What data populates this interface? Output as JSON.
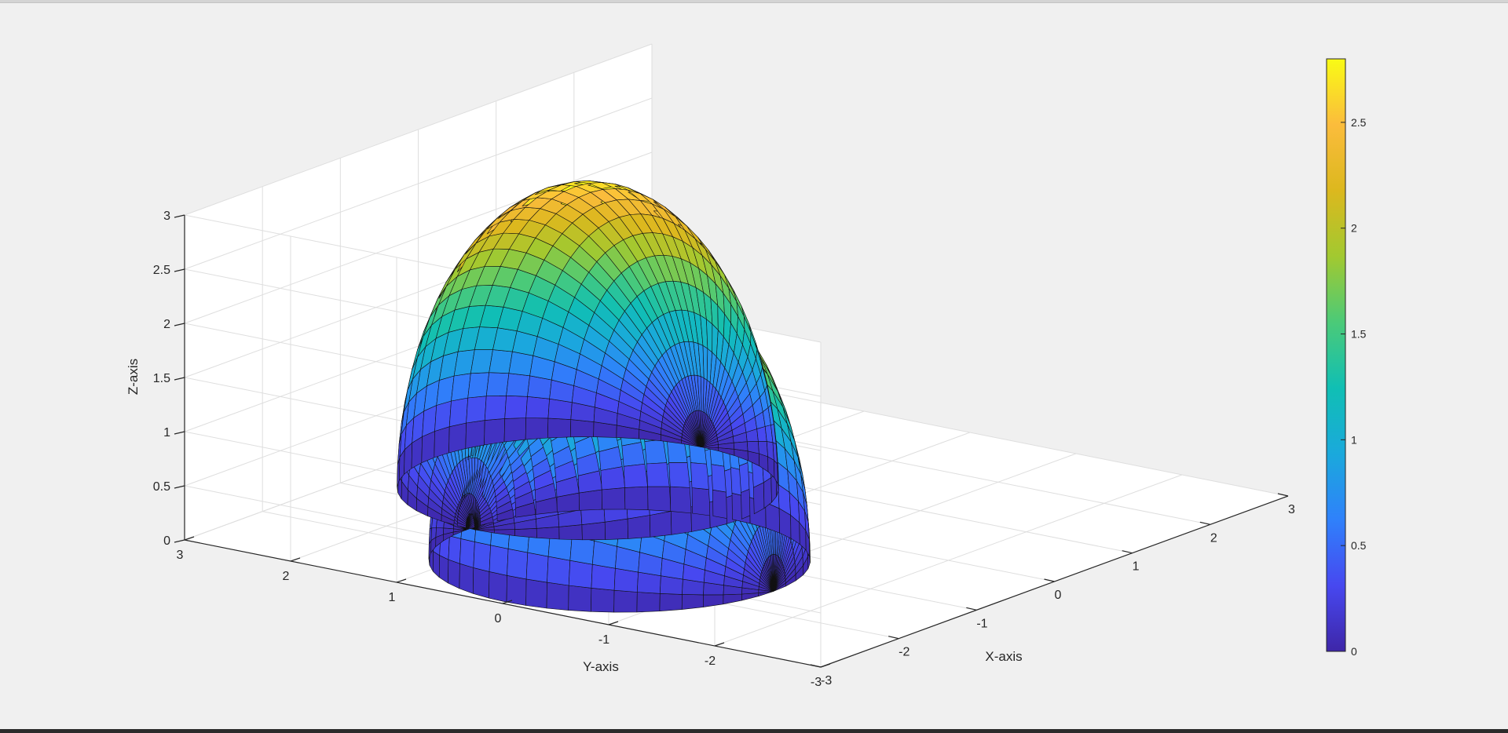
{
  "chart_data": {
    "type": "surface",
    "title": "",
    "xlabel": "X-axis",
    "ylabel": "Y-axis",
    "zlabel": "Z-axis",
    "xlim": [
      -3,
      3
    ],
    "ylim": [
      -3,
      3
    ],
    "zlim": [
      0,
      3
    ],
    "x_ticks": [
      "-3",
      "-2",
      "-1",
      "0",
      "1",
      "2",
      "3"
    ],
    "y_ticks": [
      "3",
      "2",
      "1",
      "0",
      "-1",
      "-2",
      "-3"
    ],
    "z_ticks": [
      "0",
      "0.5",
      "1",
      "1.5",
      "2",
      "2.5",
      "3"
    ],
    "grid": true,
    "colormap": "parula",
    "colormap_colors": [
      "#3e26a8",
      "#4748f0",
      "#2f81fb",
      "#1aa9dc",
      "#10bfb4",
      "#4bca78",
      "#a2c930",
      "#dcb81e",
      "#fbbc3c",
      "#f9fb15"
    ],
    "colorbar": {
      "range": [
        0,
        2.8
      ],
      "ticks": [
        "0",
        "0.5",
        "1",
        "1.5",
        "2",
        "2.5"
      ],
      "placement": "right"
    },
    "surfaces": [
      {
        "shape": "half-dome",
        "axis": "y",
        "center_x": -1.5,
        "radius": 1.45,
        "z_max": 2.8,
        "mesh": "black-edged faceted"
      },
      {
        "shape": "half-dome",
        "axis": "x",
        "center_y": 1.4,
        "radius": 1.45,
        "z_max": 2.8,
        "mesh": "black-edged faceted"
      }
    ]
  }
}
